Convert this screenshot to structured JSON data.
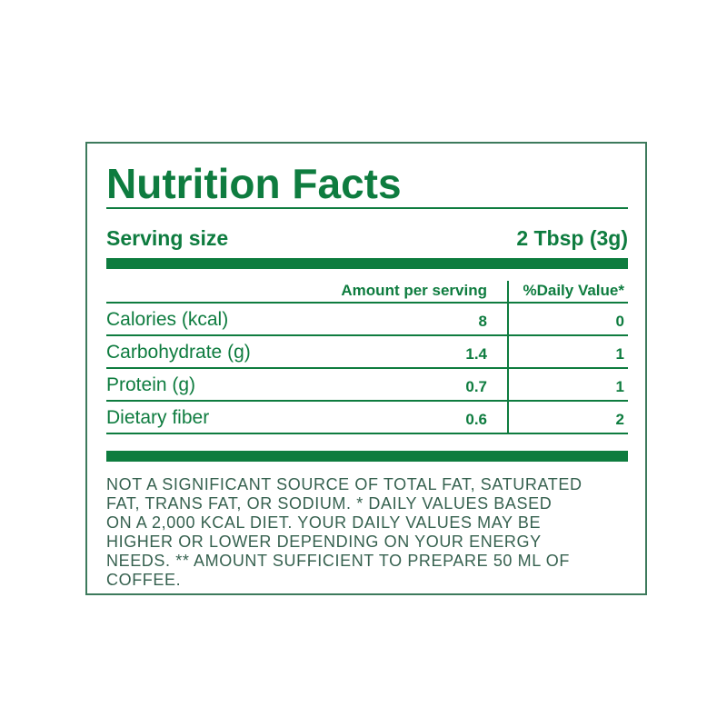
{
  "label": {
    "title": "Nutrition Facts",
    "serving": {
      "label": "Serving size",
      "value": "2 Tbsp (3g)"
    },
    "table": {
      "headers": {
        "amount": "Amount per serving",
        "daily_value": "%Daily Value*"
      },
      "rows": [
        {
          "name": "Calories (kcal)",
          "amount": "8",
          "daily_value": "0"
        },
        {
          "name": "Carbohydrate (g)",
          "amount": "1.4",
          "daily_value": "1"
        },
        {
          "name": "Protein (g)",
          "amount": "0.7",
          "daily_value": "1"
        },
        {
          "name": "Dietary fiber",
          "amount": "0.6",
          "daily_value": "2"
        }
      ]
    },
    "footnote": "NOT A SIGNIFICANT SOURCE OF TOTAL FAT, SATURATED\nFAT, TRANS FAT, OR SODIUM. * DAILY VALUES BASED\nON A 2,000 KCAL DIET. YOUR DAILY VALUES MAY BE\nHIGHER OR LOWER DEPENDING ON YOUR ENERGY\nNEEDS. ** AMOUNT SUFFICIENT TO PREPARE 50 ML OF\nCOFFEE.",
    "colors": {
      "primary_green": "#0e7c3f",
      "footnote_green": "#36614f",
      "border_green": "#3d7a5c"
    }
  }
}
